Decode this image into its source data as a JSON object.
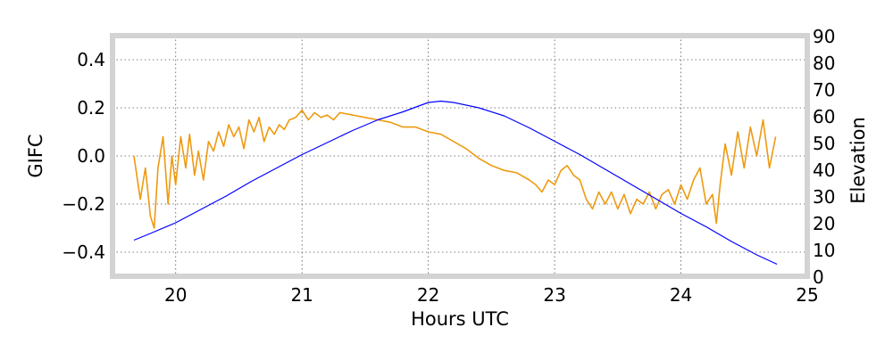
{
  "chart_data": {
    "type": "line",
    "xlabel": "Hours UTC",
    "ylabel": "GIFC",
    "y2label": "Elevation",
    "xlim": [
      19.5,
      25
    ],
    "ylim": [
      -0.5,
      0.5
    ],
    "y2lim": [
      0,
      90
    ],
    "xticks": [
      "20",
      "21",
      "22",
      "23",
      "24",
      "25"
    ],
    "yticks": [
      "−0.4",
      "−0.2",
      "0.0",
      "0.2",
      "0.4"
    ],
    "y2ticks": [
      "0",
      "10",
      "20",
      "30",
      "40",
      "50",
      "60",
      "70",
      "80",
      "90"
    ],
    "grid": true,
    "frame_color": "#d3d3d3",
    "series": [
      {
        "axis": "left",
        "color": "#ee9a10",
        "x": [
          19.67,
          19.72,
          19.76,
          19.8,
          19.83,
          19.86,
          19.9,
          19.94,
          19.97,
          20.0,
          20.04,
          20.08,
          20.11,
          20.15,
          20.18,
          20.22,
          20.26,
          20.3,
          20.34,
          20.38,
          20.42,
          20.46,
          20.5,
          20.54,
          20.58,
          20.62,
          20.66,
          20.7,
          20.74,
          20.78,
          20.82,
          20.86,
          20.9,
          20.95,
          21.0,
          21.05,
          21.1,
          21.15,
          21.2,
          21.25,
          21.3,
          21.4,
          21.5,
          21.6,
          21.7,
          21.8,
          21.9,
          22.0,
          22.1,
          22.2,
          22.3,
          22.4,
          22.5,
          22.6,
          22.7,
          22.8,
          22.85,
          22.9,
          22.95,
          23.0,
          23.05,
          23.1,
          23.15,
          23.2,
          23.25,
          23.3,
          23.35,
          23.4,
          23.45,
          23.5,
          23.55,
          23.6,
          23.65,
          23.7,
          23.75,
          23.8,
          23.85,
          23.9,
          23.95,
          24.0,
          24.05,
          24.1,
          24.15,
          24.2,
          24.25,
          24.28,
          24.31,
          24.35,
          24.4,
          24.45,
          24.5,
          24.55,
          24.6,
          24.65,
          24.7,
          24.75
        ],
        "y": [
          0.0,
          -0.18,
          -0.05,
          -0.25,
          -0.3,
          -0.05,
          0.08,
          -0.2,
          0.0,
          -0.12,
          0.08,
          -0.05,
          0.09,
          -0.08,
          0.02,
          -0.1,
          0.06,
          0.02,
          0.1,
          0.04,
          0.13,
          0.08,
          0.12,
          0.03,
          0.15,
          0.1,
          0.16,
          0.06,
          0.12,
          0.09,
          0.13,
          0.11,
          0.15,
          0.16,
          0.19,
          0.15,
          0.18,
          0.16,
          0.17,
          0.15,
          0.18,
          0.17,
          0.16,
          0.15,
          0.14,
          0.12,
          0.12,
          0.1,
          0.09,
          0.06,
          0.03,
          -0.01,
          -0.04,
          -0.06,
          -0.07,
          -0.1,
          -0.12,
          -0.15,
          -0.1,
          -0.12,
          -0.06,
          -0.04,
          -0.08,
          -0.1,
          -0.18,
          -0.22,
          -0.15,
          -0.2,
          -0.15,
          -0.22,
          -0.16,
          -0.24,
          -0.18,
          -0.2,
          -0.15,
          -0.22,
          -0.16,
          -0.14,
          -0.2,
          -0.12,
          -0.18,
          -0.1,
          -0.05,
          -0.2,
          -0.16,
          -0.28,
          -0.12,
          0.05,
          -0.08,
          0.1,
          -0.05,
          0.12,
          0.0,
          0.15,
          -0.05,
          0.08
        ]
      },
      {
        "axis": "right",
        "color": "#0000ff",
        "x": [
          19.67,
          19.8,
          20.0,
          20.2,
          20.4,
          20.6,
          20.8,
          21.0,
          21.2,
          21.4,
          21.6,
          21.8,
          22.0,
          22.1,
          22.2,
          22.4,
          22.6,
          22.8,
          23.0,
          23.2,
          23.4,
          23.6,
          23.8,
          24.0,
          24.2,
          24.4,
          24.6,
          24.76
        ],
        "y": [
          13.5,
          16,
          20,
          25,
          30,
          35.5,
          40.5,
          45.5,
          50,
          54.5,
          58.5,
          61.5,
          65,
          65.5,
          65,
          63,
          60,
          55.5,
          50.5,
          45.5,
          40,
          34.5,
          29,
          23.5,
          18.5,
          13,
          8,
          4.5
        ]
      }
    ]
  }
}
